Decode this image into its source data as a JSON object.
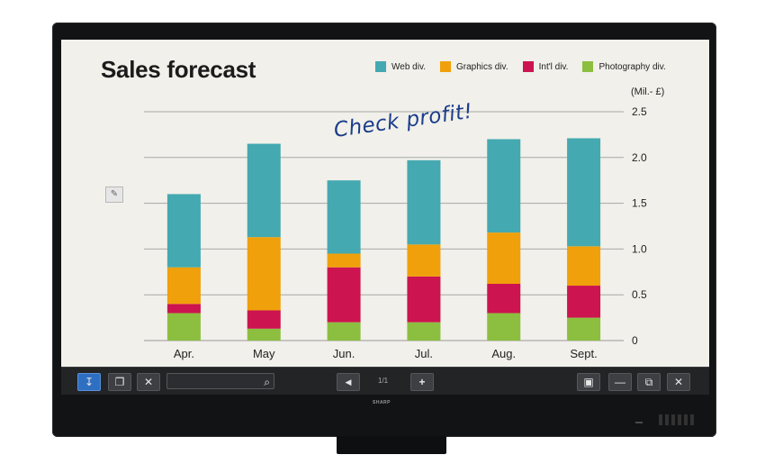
{
  "chart_data": {
    "type": "bar",
    "stacked": true,
    "title": "Sales forecast",
    "ylabel": "(Mil.- £)",
    "categories": [
      "Apr.",
      "May",
      "Jun.",
      "Jul.",
      "Aug.",
      "Sept."
    ],
    "series": [
      {
        "name": "Photography div.",
        "color": "#8cbf3f",
        "values": [
          0.3,
          0.13,
          0.2,
          0.2,
          0.3,
          0.25
        ]
      },
      {
        "name": "Int'l div.",
        "color": "#cc1450",
        "values": [
          0.1,
          0.2,
          0.6,
          0.5,
          0.32,
          0.35
        ]
      },
      {
        "name": "Graphics div.",
        "color": "#f0a00a",
        "values": [
          0.4,
          0.8,
          0.15,
          0.35,
          0.56,
          0.43
        ]
      },
      {
        "name": "Web div.",
        "color": "#44a9b0",
        "values": [
          0.8,
          1.02,
          0.8,
          0.92,
          1.02,
          1.18
        ]
      }
    ],
    "yticks": [
      "2.5",
      "2.0",
      "1.5",
      "1.0",
      "0.5",
      "0"
    ],
    "ylim": [
      0,
      2.5
    ],
    "grid": true,
    "legend_position": "top-right",
    "annotation": "Check profit!"
  },
  "sidebar": {
    "icon": "pen-tool-icon"
  },
  "toolbar": {
    "page_indicator": "1/1",
    "buttons": {
      "pen": "↧",
      "layers": "❐",
      "tools": "✕",
      "search": "⌕",
      "prev": "◀",
      "add": "+",
      "switch_mode": "▣",
      "minimize": "—",
      "window": "⧉",
      "close": "✕"
    }
  },
  "brand": "SHARP",
  "colors": {
    "bezel": "#121314",
    "screen": "#f1f0ea",
    "toolbar": "#232426",
    "accent": "#2f6fc2"
  }
}
